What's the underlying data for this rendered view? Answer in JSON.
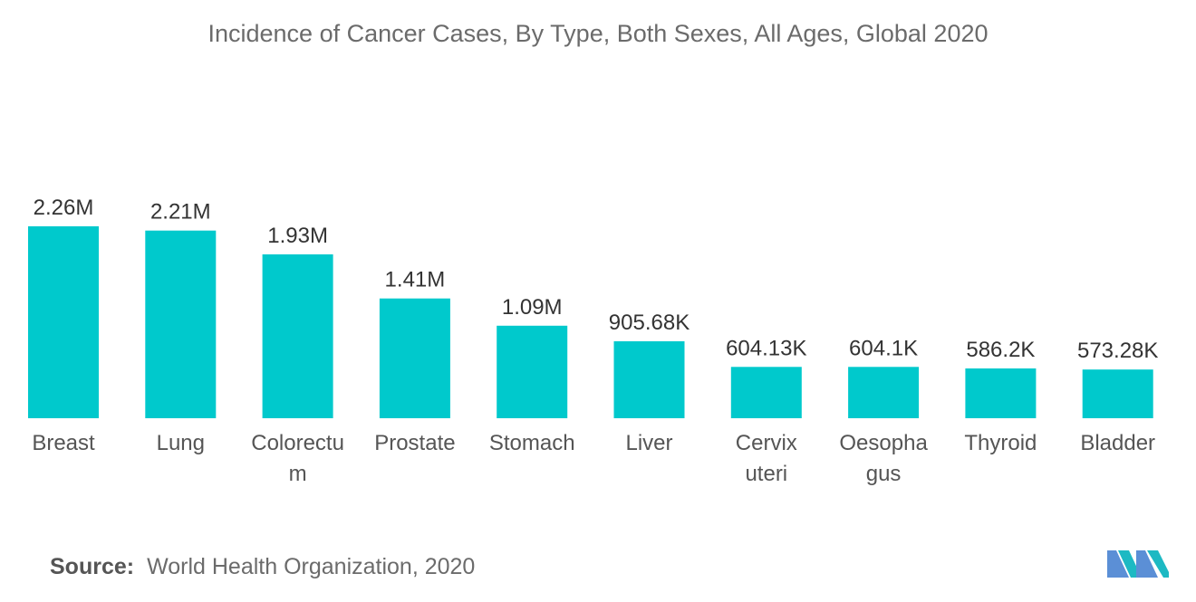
{
  "chart_data": {
    "type": "bar",
    "title": "Incidence of Cancer Cases, By Type, Both Sexes, All Ages, Global 2020",
    "categories": [
      [
        "Breast"
      ],
      [
        "Lung"
      ],
      [
        "Colorectu",
        "m"
      ],
      [
        "Prostate"
      ],
      [
        "Stomach"
      ],
      [
        "Liver"
      ],
      [
        "Cervix",
        "uteri"
      ],
      [
        "Oesopha",
        "gus"
      ],
      [
        "Thyroid"
      ],
      [
        "Bladder"
      ]
    ],
    "values": [
      2260000,
      2210000,
      1930000,
      1410000,
      1090000,
      905680,
      604130,
      604100,
      586200,
      573280
    ],
    "value_labels": [
      "2.26M",
      "2.21M",
      "1.93M",
      "1.41M",
      "1.09M",
      "905.68K",
      "604.13K",
      "604.1K",
      "586.2K",
      "573.28K"
    ],
    "ylim": [
      0,
      2260000
    ],
    "xlabel": "",
    "ylabel": "",
    "grid": false,
    "bar_color": "#00c9cc"
  },
  "source": {
    "label": "Source:",
    "text": "World Health Organization, 2020"
  },
  "logo": {
    "icon": "mordor-intelligence-logo",
    "colors": [
      "#5b8fd6",
      "#1db9c3"
    ]
  }
}
